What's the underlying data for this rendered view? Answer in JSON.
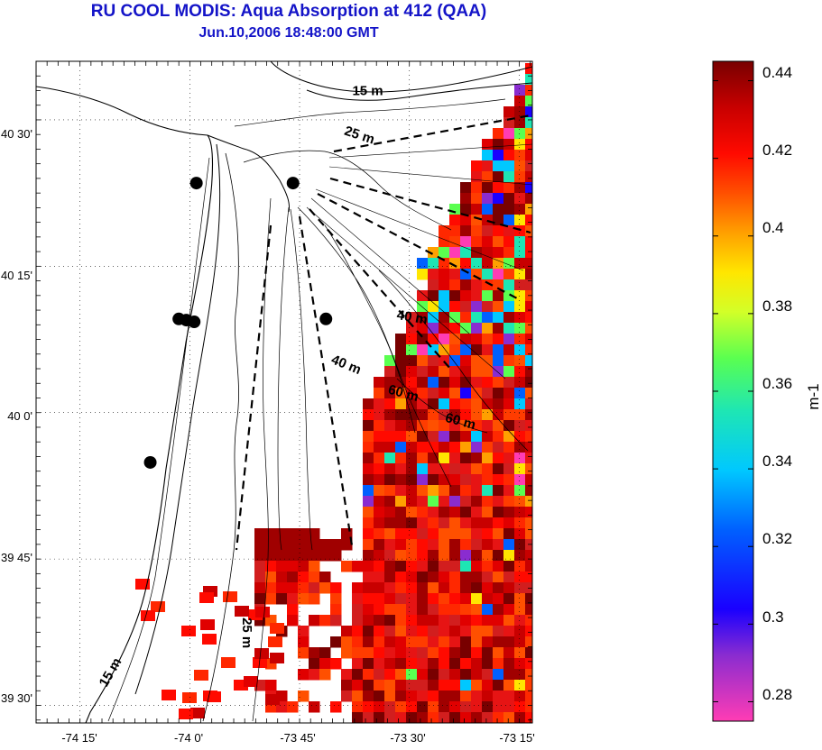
{
  "title": "RU COOL MODIS: Aqua Absorption at 412 (QAA)",
  "subtitle": "Jun.10,2006 18:48:00 GMT",
  "map": {
    "lat_ticks": [
      {
        "value": 40.5,
        "label": "40 30'"
      },
      {
        "value": 40.25,
        "label": "40 15'"
      },
      {
        "value": 40.0,
        "label": "40 0'"
      },
      {
        "value": 39.75,
        "label": "39 45'"
      },
      {
        "value": 39.5,
        "label": "39 30'"
      }
    ],
    "lon_ticks": [
      {
        "value": -74.25,
        "label": "-74 15'"
      },
      {
        "value": -74.0,
        "label": "-74 0'"
      },
      {
        "value": -73.75,
        "label": "-73 45'"
      },
      {
        "value": -73.5,
        "label": "-73 30'"
      },
      {
        "value": -73.25,
        "label": "-73 15'"
      }
    ],
    "lat_range": [
      39.47,
      40.6
    ],
    "lon_range": [
      -74.35,
      -73.22
    ],
    "grid": "dotted",
    "isobath_labels": [
      {
        "text": "15 m",
        "lon": -73.63,
        "lat": 40.542,
        "angle": 0
      },
      {
        "text": "25 m",
        "lon": -73.65,
        "lat": 40.475,
        "angle": 18
      },
      {
        "text": "40 m",
        "lon": -73.53,
        "lat": 40.16,
        "angle": 10
      },
      {
        "text": "40 m",
        "lon": -73.68,
        "lat": 40.085,
        "angle": 22
      },
      {
        "text": "60 m",
        "lon": -73.55,
        "lat": 40.033,
        "angle": 15
      },
      {
        "text": "60 m",
        "lon": -73.42,
        "lat": 39.985,
        "angle": 15
      },
      {
        "text": "25 m",
        "lon": -73.88,
        "lat": 39.65,
        "angle": 90
      },
      {
        "text": "15 m",
        "lon": -74.19,
        "lat": 39.53,
        "angle": -60
      }
    ],
    "stations": [
      {
        "lon": -73.985,
        "lat": 40.392
      },
      {
        "lon": -73.765,
        "lat": 40.392
      },
      {
        "lon": -74.025,
        "lat": 40.16
      },
      {
        "lon": -74.008,
        "lat": 40.158
      },
      {
        "lon": -73.99,
        "lat": 40.155
      },
      {
        "lon": -73.69,
        "lat": 40.16
      },
      {
        "lon": -74.09,
        "lat": 39.915
      }
    ]
  },
  "colorbar": {
    "min": 0.275,
    "max": 0.445,
    "ticks": [
      {
        "value": 0.44,
        "label": "0.44"
      },
      {
        "value": 0.42,
        "label": "0.42"
      },
      {
        "value": 0.4,
        "label": "0.4"
      },
      {
        "value": 0.38,
        "label": "0.38"
      },
      {
        "value": 0.36,
        "label": "0.36"
      },
      {
        "value": 0.34,
        "label": "0.34"
      },
      {
        "value": 0.32,
        "label": "0.32"
      },
      {
        "value": 0.3,
        "label": "0.3"
      },
      {
        "value": 0.28,
        "label": "0.28"
      }
    ],
    "unit_label": "m-1"
  }
}
